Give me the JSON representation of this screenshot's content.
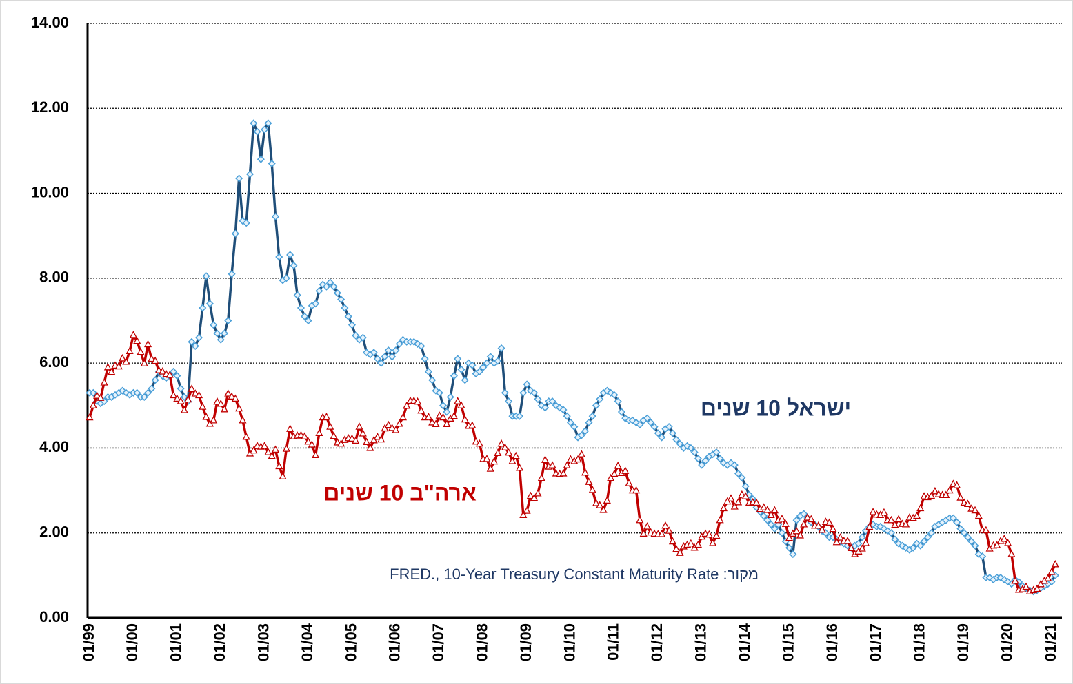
{
  "chart_data": {
    "type": "line",
    "annotations": [
      "מקור: FRED., 10-Year Treasury Constant Maturity Rate"
    ],
    "categories": [
      "01/99",
      null,
      null,
      null,
      null,
      null,
      null,
      null,
      null,
      null,
      null,
      null,
      "01/00",
      null,
      null,
      null,
      null,
      null,
      null,
      null,
      null,
      null,
      null,
      null,
      "01/01",
      null,
      null,
      null,
      null,
      null,
      null,
      null,
      null,
      null,
      null,
      null,
      "01/02",
      null,
      null,
      null,
      null,
      null,
      null,
      null,
      null,
      null,
      null,
      null,
      "01/03",
      null,
      null,
      null,
      null,
      null,
      null,
      null,
      null,
      null,
      null,
      null,
      "01/04",
      null,
      null,
      null,
      null,
      null,
      null,
      null,
      null,
      null,
      null,
      null,
      "01/05",
      null,
      null,
      null,
      null,
      null,
      null,
      null,
      null,
      null,
      null,
      null,
      "01/06",
      null,
      null,
      null,
      null,
      null,
      null,
      null,
      null,
      null,
      null,
      null,
      "01/07",
      null,
      null,
      null,
      null,
      null,
      null,
      null,
      null,
      null,
      null,
      null,
      "01/08",
      null,
      null,
      null,
      null,
      null,
      null,
      null,
      null,
      null,
      null,
      null,
      "01/09",
      null,
      null,
      null,
      null,
      null,
      null,
      null,
      null,
      null,
      null,
      null,
      "01/10",
      null,
      null,
      null,
      null,
      null,
      null,
      null,
      null,
      null,
      null,
      null,
      "01/11",
      null,
      null,
      null,
      null,
      null,
      null,
      null,
      null,
      null,
      null,
      null,
      "01/12",
      null,
      null,
      null,
      null,
      null,
      null,
      null,
      null,
      null,
      null,
      null,
      "01/13",
      null,
      null,
      null,
      null,
      null,
      null,
      null,
      null,
      null,
      null,
      null,
      "01/14",
      null,
      null,
      null,
      null,
      null,
      null,
      null,
      null,
      null,
      null,
      null,
      "01/15",
      null,
      null,
      null,
      null,
      null,
      null,
      null,
      null,
      null,
      null,
      null,
      "01/16",
      null,
      null,
      null,
      null,
      null,
      null,
      null,
      null,
      null,
      null,
      null,
      "01/17",
      null,
      null,
      null,
      null,
      null,
      null,
      null,
      null,
      null,
      null,
      null,
      "01/18",
      null,
      null,
      null,
      null,
      null,
      null,
      null,
      null,
      null,
      null,
      null,
      "01/19",
      null,
      null,
      null,
      null,
      null,
      null,
      null,
      null,
      null,
      null,
      null,
      "01/20",
      null,
      null,
      null,
      null,
      null,
      null,
      null,
      null,
      null,
      null,
      null,
      "01/21",
      null
    ],
    "series": [
      {
        "name": "ישראל 10 שנים",
        "color": "#1f4e79",
        "marker_color": "#4a9fd8",
        "marker": "diamond",
        "values": [
          5.3,
          5.3,
          5.1,
          5.05,
          5.1,
          5.2,
          5.2,
          5.25,
          5.3,
          5.35,
          5.3,
          5.25,
          5.3,
          5.3,
          5.2,
          5.2,
          5.3,
          5.4,
          5.6,
          5.8,
          5.7,
          5.65,
          5.7,
          5.8,
          5.7,
          5.4,
          5.2,
          5.1,
          6.5,
          6.4,
          6.6,
          7.3,
          8.05,
          7.4,
          6.9,
          6.7,
          6.55,
          6.7,
          7.0,
          8.1,
          9.05,
          10.35,
          9.35,
          9.3,
          10.45,
          11.65,
          11.45,
          10.8,
          11.5,
          11.65,
          10.7,
          9.45,
          8.5,
          7.95,
          8.0,
          8.55,
          8.3,
          7.6,
          7.3,
          7.1,
          7.0,
          7.35,
          7.4,
          7.7,
          7.85,
          7.8,
          7.9,
          7.8,
          7.65,
          7.5,
          7.3,
          7.1,
          6.9,
          6.65,
          6.55,
          6.6,
          6.25,
          6.2,
          6.25,
          6.1,
          6.0,
          6.15,
          6.3,
          6.15,
          6.3,
          6.45,
          6.55,
          6.5,
          6.5,
          6.5,
          6.45,
          6.4,
          6.1,
          5.8,
          5.6,
          5.35,
          5.3,
          5.0,
          4.85,
          5.2,
          5.7,
          6.1,
          5.85,
          5.6,
          6.0,
          5.95,
          5.75,
          5.8,
          5.9,
          6.0,
          6.15,
          6.0,
          6.05,
          6.35,
          5.3,
          5.1,
          4.75,
          4.75,
          4.75,
          5.3,
          5.5,
          5.35,
          5.3,
          5.15,
          5.0,
          4.95,
          5.1,
          5.1,
          5.0,
          4.95,
          4.9,
          4.75,
          4.6,
          4.5,
          4.25,
          4.3,
          4.4,
          4.6,
          4.75,
          5.0,
          5.15,
          5.3,
          5.35,
          5.3,
          5.25,
          5.1,
          4.85,
          4.7,
          4.65,
          4.65,
          4.6,
          4.55,
          4.65,
          4.7,
          4.6,
          4.5,
          4.35,
          4.25,
          4.45,
          4.5,
          4.35,
          4.2,
          4.1,
          4.0,
          4.05,
          4.0,
          3.9,
          3.75,
          3.6,
          3.7,
          3.8,
          3.85,
          3.9,
          3.75,
          3.65,
          3.6,
          3.65,
          3.6,
          3.4,
          3.3,
          3.1,
          2.9,
          2.8,
          2.6,
          2.5,
          2.4,
          2.3,
          2.2,
          2.1,
          2.2,
          2.0,
          1.8,
          1.65,
          1.5,
          2.3,
          2.4,
          2.45,
          2.35,
          2.25,
          2.2,
          2.15,
          2.05,
          2.0,
          1.9,
          1.9,
          1.85,
          1.8,
          1.75,
          1.7,
          1.65,
          1.7,
          1.75,
          1.9,
          2.05,
          2.15,
          2.2,
          2.15,
          2.15,
          2.1,
          2.05,
          2.0,
          1.85,
          1.75,
          1.7,
          1.65,
          1.6,
          1.65,
          1.75,
          1.7,
          1.8,
          1.9,
          2.0,
          2.15,
          2.2,
          2.25,
          2.3,
          2.35,
          2.35,
          2.25,
          2.1,
          2.0,
          1.9,
          1.8,
          1.7,
          1.5,
          1.45,
          0.95,
          0.95,
          0.9,
          0.95,
          0.95,
          0.9,
          0.85,
          0.8,
          0.9,
          0.85,
          0.75,
          0.7,
          0.65,
          0.62,
          0.65,
          0.7,
          0.75,
          0.8,
          0.85,
          1.0
        ]
      },
      {
        "name": "ארה\"ב 10 שנים",
        "color": "#c00000",
        "marker_color": "#c00000",
        "marker": "triangle",
        "values": [
          4.72,
          5.0,
          5.23,
          5.18,
          5.54,
          5.9,
          5.79,
          5.94,
          5.92,
          6.11,
          6.03,
          6.28,
          6.66,
          6.52,
          6.26,
          5.99,
          6.44,
          6.1,
          6.05,
          5.83,
          5.8,
          5.74,
          5.72,
          5.24,
          5.16,
          5.1,
          4.89,
          5.14,
          5.39,
          5.28,
          5.24,
          4.97,
          4.73,
          4.57,
          4.65,
          5.09,
          5.04,
          4.91,
          5.28,
          5.21,
          5.16,
          4.93,
          4.65,
          4.26,
          3.87,
          3.94,
          4.05,
          4.03,
          4.05,
          3.9,
          3.81,
          3.96,
          3.57,
          3.33,
          3.98,
          4.45,
          4.27,
          4.29,
          4.3,
          4.27,
          4.15,
          4.08,
          3.83,
          4.35,
          4.72,
          4.73,
          4.5,
          4.28,
          4.13,
          4.1,
          4.19,
          4.23,
          4.22,
          4.17,
          4.5,
          4.34,
          4.14,
          4.0,
          4.18,
          4.26,
          4.2,
          4.46,
          4.54,
          4.47,
          4.42,
          4.57,
          4.72,
          4.99,
          5.11,
          5.11,
          5.09,
          4.88,
          4.72,
          4.73,
          4.6,
          4.56,
          4.76,
          4.72,
          4.56,
          4.69,
          4.75,
          5.1,
          5.0,
          4.67,
          4.52,
          4.53,
          4.15,
          4.1,
          3.74,
          3.74,
          3.51,
          3.68,
          3.88,
          4.1,
          4.01,
          3.89,
          3.69,
          3.81,
          3.53,
          2.42,
          2.52,
          2.87,
          2.82,
          2.93,
          3.29,
          3.72,
          3.56,
          3.59,
          3.4,
          3.39,
          3.4,
          3.59,
          3.73,
          3.69,
          3.73,
          3.85,
          3.42,
          3.2,
          3.01,
          2.7,
          2.65,
          2.54,
          2.76,
          3.29,
          3.39,
          3.58,
          3.41,
          3.46,
          3.17,
          3.0,
          3.0,
          2.3,
          1.98,
          2.15,
          2.01,
          1.98,
          1.97,
          1.97,
          2.17,
          2.05,
          1.8,
          1.62,
          1.53,
          1.68,
          1.72,
          1.75,
          1.65,
          1.72,
          1.91,
          1.98,
          1.96,
          1.76,
          1.93,
          2.3,
          2.58,
          2.74,
          2.81,
          2.62,
          2.72,
          2.9,
          2.86,
          2.71,
          2.72,
          2.71,
          2.56,
          2.6,
          2.54,
          2.42,
          2.53,
          2.3,
          2.33,
          2.21,
          1.88,
          1.98,
          2.04,
          1.94,
          2.2,
          2.36,
          2.32,
          2.17,
          2.17,
          2.07,
          2.26,
          2.24,
          2.09,
          1.78,
          1.89,
          1.81,
          1.81,
          1.64,
          1.5,
          1.56,
          1.63,
          1.76,
          2.14,
          2.49,
          2.43,
          2.42,
          2.48,
          2.3,
          2.3,
          2.19,
          2.32,
          2.21,
          2.2,
          2.36,
          2.35,
          2.4,
          2.58,
          2.86,
          2.84,
          2.87,
          2.98,
          2.91,
          2.89,
          2.89,
          3.0,
          3.15,
          3.12,
          2.83,
          2.71,
          2.68,
          2.57,
          2.53,
          2.4,
          2.07,
          2.06,
          1.63,
          1.7,
          1.71,
          1.81,
          1.86,
          1.76,
          1.5,
          0.87,
          0.66,
          0.67,
          0.73,
          0.62,
          0.65,
          0.68,
          0.79,
          0.87,
          0.93,
          1.08,
          1.26
        ]
      }
    ],
    "ylim": [
      0,
      14
    ],
    "yticks": [
      {
        "value": 0,
        "label": "0.00"
      },
      {
        "value": 2,
        "label": "2.00"
      },
      {
        "value": 4,
        "label": "4.00"
      },
      {
        "value": 6,
        "label": "6.00"
      },
      {
        "value": 8,
        "label": "8.00"
      },
      {
        "value": 10,
        "label": "10.00"
      },
      {
        "value": 12,
        "label": "12.00"
      },
      {
        "value": 14,
        "label": "14.00"
      }
    ],
    "grid": true
  }
}
